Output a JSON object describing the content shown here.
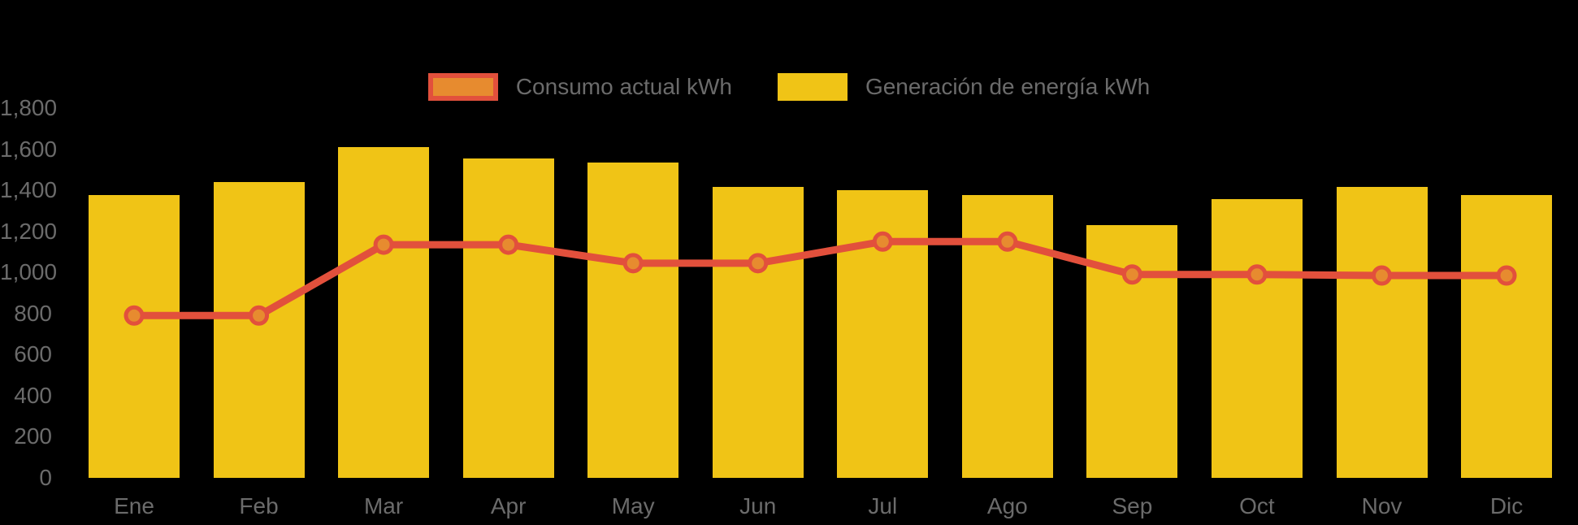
{
  "chart_data": {
    "type": "bar+line",
    "title": "",
    "categories": [
      "Ene",
      "Feb",
      "Mar",
      "Apr",
      "May",
      "Jun",
      "Jul",
      "Ago",
      "Sep",
      "Oct",
      "Nov",
      "Dic"
    ],
    "series": [
      {
        "name": "Consumo actual kWh",
        "type": "line",
        "color": "#e2503c",
        "marker_fill": "#e78b2f",
        "values": [
          790,
          790,
          1135,
          1135,
          1045,
          1045,
          1150,
          1150,
          990,
          990,
          985,
          985
        ]
      },
      {
        "name": "Generación de energía kWh",
        "type": "bar",
        "color": "#f0c416",
        "values": [
          1375,
          1440,
          1610,
          1555,
          1535,
          1415,
          1400,
          1375,
          1230,
          1355,
          1415,
          1375
        ]
      }
    ],
    "ylim": [
      0,
      1800
    ],
    "y_tick_labels": [
      "0",
      "200",
      "400",
      "600",
      "800",
      "1,000",
      "1,200",
      "1,400",
      "1,600",
      "1,800"
    ],
    "y_tick_values": [
      0,
      200,
      400,
      600,
      800,
      1000,
      1200,
      1400,
      1600,
      1800
    ],
    "grid": false,
    "legend_position": "top",
    "background_color": "#000000",
    "text_color": "#6b6b6b"
  },
  "legend": {
    "items": [
      {
        "label": "Consumo actual kWh"
      },
      {
        "label": "Generación de energía kWh"
      }
    ]
  }
}
